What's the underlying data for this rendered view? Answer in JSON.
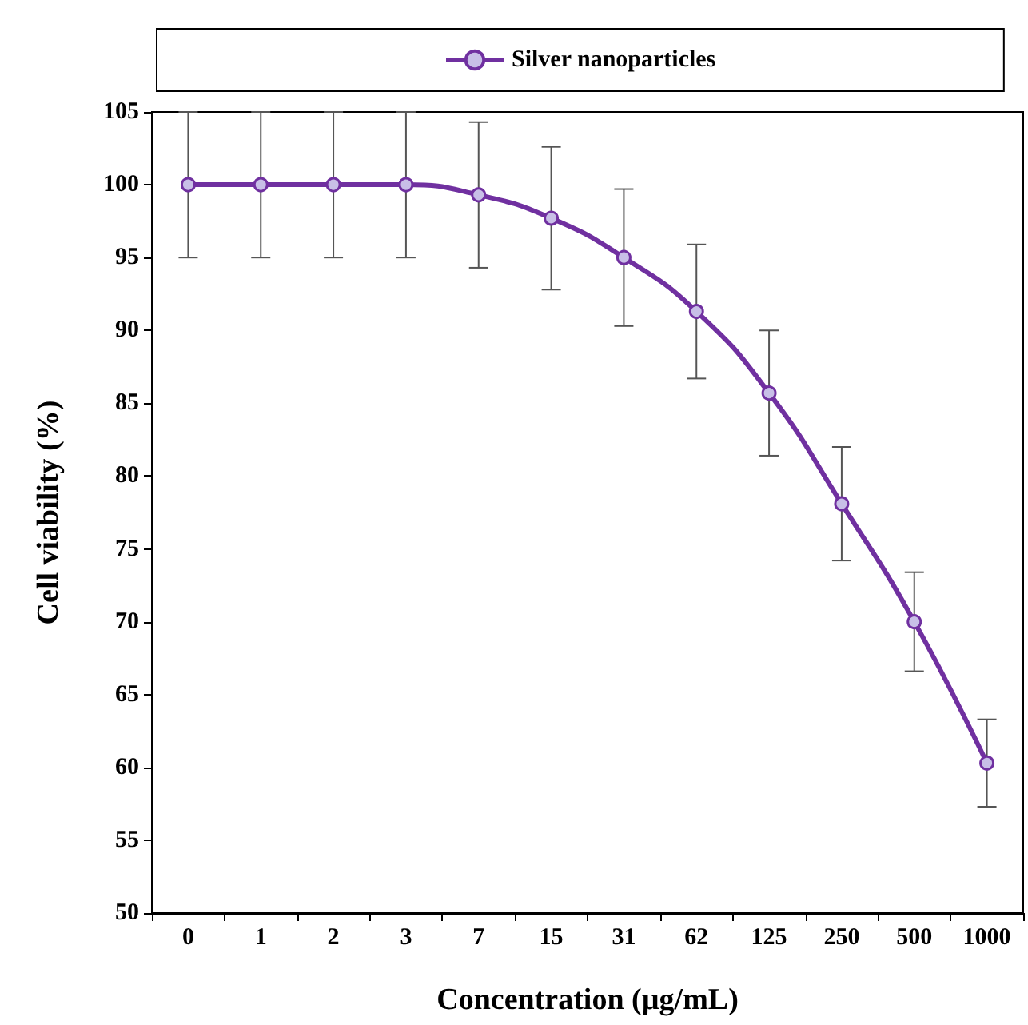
{
  "chart_data": {
    "type": "line",
    "xlabel": "Concentration (µg/mL)",
    "ylabel": "Cell viability (%)",
    "categories": [
      "0",
      "1",
      "2",
      "3",
      "7",
      "15",
      "31",
      "62",
      "125",
      "250",
      "500",
      "1000"
    ],
    "series": [
      {
        "name": "Silver nanoparticles",
        "color": "#7030a0",
        "values": [
          100,
          100,
          100,
          100,
          99.3,
          97.7,
          95,
          91.3,
          85.7,
          78.1,
          70,
          60.3
        ],
        "errors": [
          5,
          5,
          5,
          5,
          5,
          4.9,
          4.7,
          4.6,
          4.3,
          3.9,
          3.4,
          3
        ]
      }
    ],
    "ylim": [
      50,
      105
    ],
    "yticks": [
      50,
      55,
      60,
      65,
      70,
      75,
      80,
      85,
      90,
      95,
      100,
      105
    ],
    "grid": false,
    "legend": "top",
    "marker": "circle",
    "line_style": "solid"
  }
}
